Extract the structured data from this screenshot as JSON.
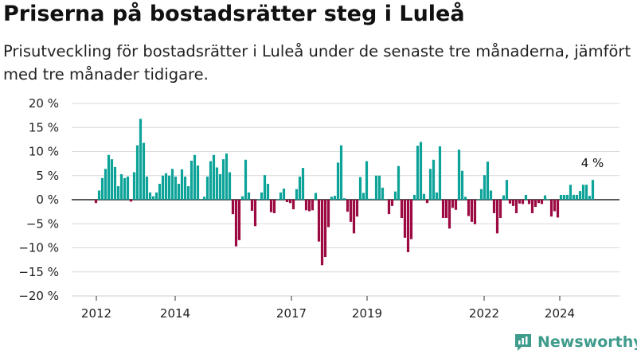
{
  "title": "Priserna på bostadsrätter steg i Luleå",
  "subtitle": "Prisutveckling för bostadsrätter i Luleå under de senaste tre månaderna, jämfört med tre månader tidigare.",
  "brand": "Newsworthy",
  "colors": {
    "positive": "#0da399",
    "negative": "#9b0a42",
    "brand": "#3f9b8b"
  },
  "chart_data": {
    "type": "bar",
    "ylim": [
      -20,
      20
    ],
    "y_ticks": [
      {
        "value": 20,
        "label": "20 %"
      },
      {
        "value": 15,
        "label": "15 %"
      },
      {
        "value": 10,
        "label": "10 %"
      },
      {
        "value": 5,
        "label": "5 %"
      },
      {
        "value": 0,
        "label": "0 %"
      },
      {
        "value": -5,
        "label": "−5 %"
      },
      {
        "value": -10,
        "label": "−10 %"
      },
      {
        "value": -15,
        "label": "−15 %"
      },
      {
        "value": -20,
        "label": "−20 %"
      }
    ],
    "x_ticks": [
      "2012",
      "2014",
      "2017",
      "2019",
      "2022",
      "2024"
    ],
    "annotation": "4 %",
    "values": [
      -0.7,
      1.9,
      4.5,
      6.4,
      9.3,
      8.4,
      6.8,
      2.8,
      5.3,
      4.5,
      4.8,
      -0.4,
      5.7,
      11.3,
      16.8,
      11.8,
      4.8,
      1.5,
      0.7,
      1.5,
      3.3,
      5.0,
      5.5,
      5.0,
      6.4,
      4.8,
      3.3,
      6.3,
      4.8,
      2.8,
      8.1,
      9.3,
      7.1,
      0.1,
      0.6,
      4.8,
      8.0,
      9.3,
      6.7,
      5.3,
      8.4,
      9.6,
      5.7,
      -3.0,
      -9.7,
      -8.4,
      0.7,
      8.3,
      1.5,
      -2.3,
      -5.5,
      0.1,
      1.5,
      5.1,
      3.3,
      -2.6,
      -2.8,
      0.1,
      1.5,
      2.3,
      -0.5,
      -0.7,
      -2.0,
      2.2,
      4.8,
      6.6,
      -2.2,
      -2.4,
      -2.2,
      1.4,
      -8.7,
      -13.6,
      -11.9,
      -5.7,
      0.6,
      0.8,
      7.7,
      11.3,
      0.3,
      -2.5,
      -4.6,
      -7.0,
      -3.5,
      4.7,
      1.4,
      8.0,
      0.2,
      0.2,
      5.0,
      5.0,
      2.5,
      0.1,
      -3.0,
      -1.3,
      1.7,
      7.0,
      -3.8,
      -7.9,
      -10.9,
      -8.2,
      1.0,
      11.2,
      12.0,
      1.2,
      -0.7,
      6.4,
      8.3,
      1.5,
      11.1,
      -3.8,
      -3.8,
      -6.0,
      -1.7,
      -2.1,
      10.4,
      6.0,
      0.6,
      -3.4,
      -4.6,
      -5.1,
      0.1,
      2.2,
      5.1,
      7.9,
      1.9,
      -2.8,
      -7.0,
      -3.8,
      0.9,
      4.1,
      -0.8,
      -1.3,
      -2.8,
      -0.8,
      -0.9,
      1.0,
      -0.9,
      -2.8,
      -1.5,
      -0.7,
      -0.9,
      0.9,
      0.1,
      -3.5,
      -2.4,
      -3.7,
      1.0,
      1.0,
      1.0,
      3.1,
      1.0,
      1.0,
      1.8,
      3.1,
      3.1,
      0.8,
      4.1
    ]
  }
}
